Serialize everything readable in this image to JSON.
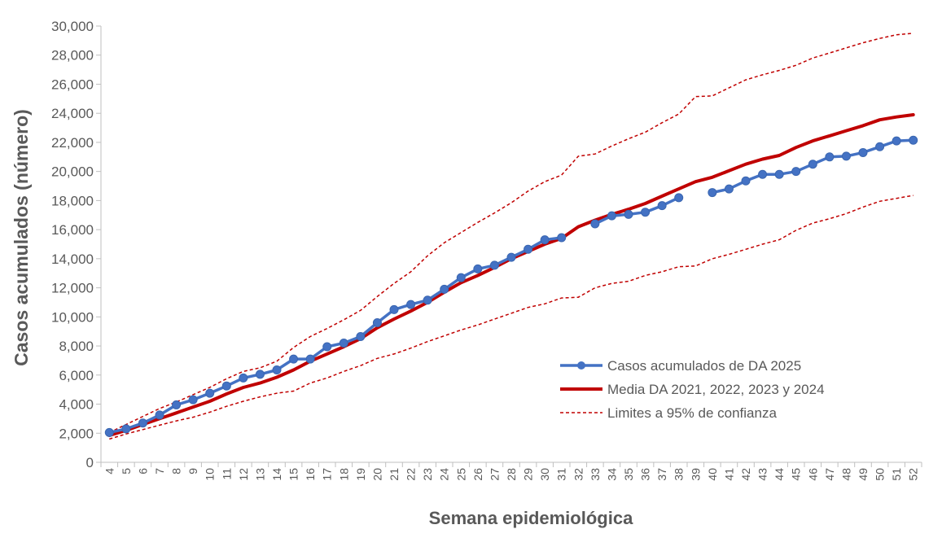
{
  "chart_data": {
    "type": "line",
    "xlabel": "Semana epidemiológica",
    "ylabel": "Casos acumulados (número)",
    "ylim": [
      0,
      30000
    ],
    "y_ticks": [
      0,
      2000,
      4000,
      6000,
      8000,
      10000,
      12000,
      14000,
      16000,
      18000,
      20000,
      22000,
      24000,
      26000,
      28000,
      30000
    ],
    "y_tick_labels": [
      "0",
      "2,000",
      "4,000",
      "6,000",
      "8,000",
      "10,000",
      "12,000",
      "14,000",
      "16,000",
      "18,000",
      "20,000",
      "22,000",
      "24,000",
      "26,000",
      "28,000",
      "30,000"
    ],
    "x": [
      "4",
      "5",
      "6",
      "7",
      "8",
      "9",
      "10",
      "11",
      "12",
      "13",
      "14",
      "15",
      "16",
      "17",
      "18",
      "19",
      "20",
      "21",
      "22",
      "23",
      "24",
      "25",
      "26",
      "27",
      "28",
      "29",
      "30",
      "31",
      "32",
      "33",
      "34",
      "35",
      "36",
      "37",
      "38",
      "39",
      "40",
      "41",
      "42",
      "43",
      "44",
      "45",
      "46",
      "47",
      "48",
      "49",
      "50",
      "51",
      "52"
    ],
    "grid": false,
    "legend_position": "lower-right",
    "colors": {
      "cases": "#4472C4",
      "mean": "#C00000",
      "limits": "#C00000",
      "axis": "#BFBFBF",
      "text": "#595959"
    },
    "series": [
      {
        "name": "Casos acumulados de DA 2025",
        "style": "line-markers",
        "values": [
          2050,
          2300,
          2700,
          3250,
          3950,
          4300,
          4750,
          5250,
          5800,
          6050,
          6350,
          7100,
          7100,
          7950,
          8200,
          8650,
          9600,
          10500,
          10850,
          11150,
          11900,
          12700,
          13300,
          13550,
          14100,
          14650,
          15300,
          15450,
          null,
          16400,
          16950,
          17050,
          17200,
          17650,
          18200,
          null,
          18550,
          18800,
          19350,
          19800,
          19800,
          20000,
          20500,
          21000,
          21050,
          21300,
          21700,
          22100,
          22150
        ]
      },
      {
        "name": "Media DA 2021, 2022, 2023 y 2024",
        "style": "thick-line",
        "values": [
          1850,
          2200,
          2600,
          3000,
          3400,
          3800,
          4200,
          4700,
          5150,
          5450,
          5850,
          6350,
          6950,
          7450,
          7950,
          8500,
          9250,
          9850,
          10400,
          11000,
          11700,
          12350,
          12850,
          13400,
          14000,
          14500,
          15000,
          15400,
          16200,
          16650,
          17050,
          17400,
          17800,
          18300,
          18800,
          19300,
          19600,
          20050,
          20500,
          20850,
          21100,
          21650,
          22100,
          22450,
          22800,
          23150,
          23550,
          23750,
          23900
        ]
      },
      {
        "name": "Limites a 95% de confianza",
        "style": "dashed",
        "values": [
          2050,
          2600,
          3150,
          3700,
          4150,
          4650,
          5150,
          5750,
          6250,
          6500,
          6950,
          7900,
          8650,
          9200,
          9800,
          10450,
          11400,
          12300,
          13100,
          14200,
          15100,
          15800,
          16500,
          17150,
          17850,
          18650,
          19300,
          19750,
          21050,
          21200,
          21750,
          22250,
          22700,
          23350,
          23950,
          25150,
          25200,
          25750,
          26300,
          26650,
          26950,
          27300,
          27800,
          28150,
          28500,
          28850,
          29150,
          29400,
          29500
        ]
      },
      {
        "name": "",
        "style": "dashed",
        "values": [
          1600,
          1950,
          2250,
          2550,
          2850,
          3100,
          3450,
          3850,
          4200,
          4500,
          4750,
          4900,
          5450,
          5800,
          6250,
          6650,
          7150,
          7450,
          7850,
          8300,
          8700,
          9100,
          9450,
          9850,
          10250,
          10650,
          10900,
          11300,
          11350,
          12000,
          12300,
          12450,
          12850,
          13100,
          13450,
          13500,
          14000,
          14300,
          14650,
          15000,
          15300,
          15950,
          16450,
          16750,
          17100,
          17550,
          17950,
          18150,
          18350
        ]
      }
    ]
  }
}
